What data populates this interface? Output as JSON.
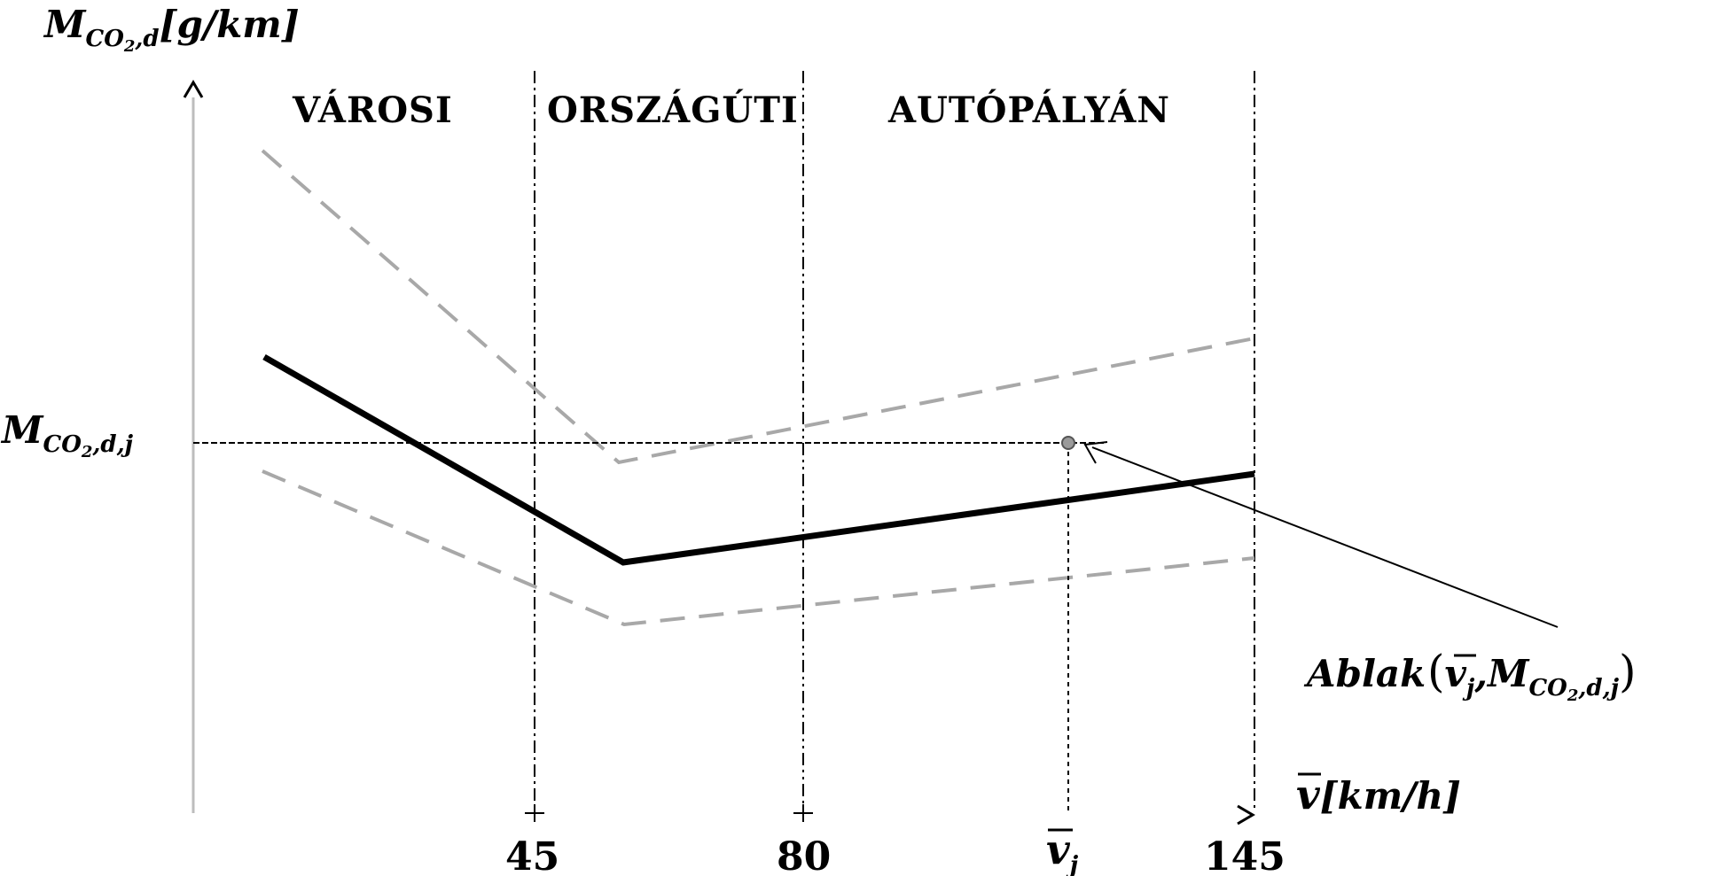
{
  "chart_data": {
    "type": "line",
    "y_axis": {
      "label_main": "M",
      "label_sub": "CO",
      "label_sub2": "2",
      "label_sub3": ",d",
      "label_unit": "[g/km]"
    },
    "x_axis": {
      "label_var": "v",
      "label_unit": "[km/h]"
    },
    "regions": [
      {
        "name": "VÁROSI"
      },
      {
        "name": "ORSZÁGÚTI"
      },
      {
        "name": "AUTÓPÁLYÁN"
      }
    ],
    "x_ticks": [
      "45",
      "80",
      "145"
    ],
    "vj_tick": {
      "var": "v",
      "sub": "j"
    },
    "ref_level": {
      "main": "M",
      "sub": "CO",
      "sub2": "2",
      "sub3": ",d,j"
    },
    "annotation": {
      "label": "Ablak",
      "tuple_open": "(",
      "var": "v",
      "sub": "j",
      "comma": ",",
      "main": "M",
      "msub": "CO",
      "msub2": "2",
      "msub3": ",d,j",
      "tuple_close": ")"
    },
    "colors": {
      "main_line": "#000000",
      "band": "#a8a8a8",
      "axis": "#bdbdbd"
    }
  }
}
